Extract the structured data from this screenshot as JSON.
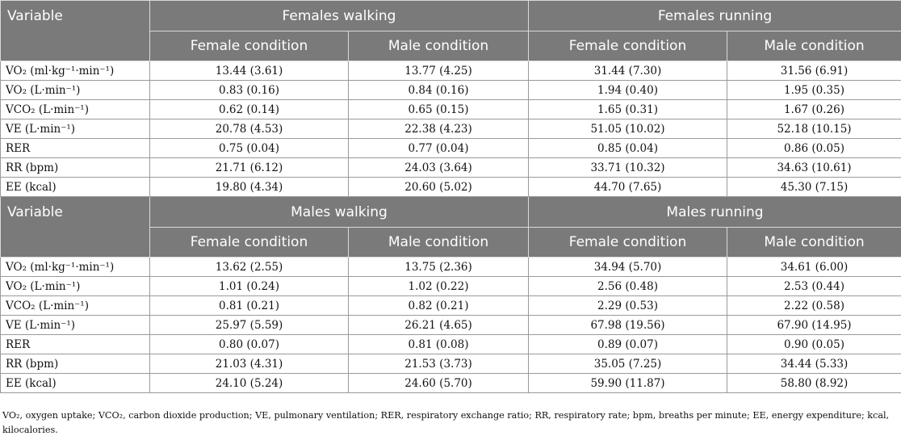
{
  "sections": [
    {
      "variable_header": "Variable",
      "group_a": "Females walking",
      "group_b": "Females running",
      "conditions": [
        "Female condition",
        "Male condition",
        "Female condition",
        "Male condition"
      ],
      "rows": [
        {
          "label": "VO₂ (ml·kg⁻¹·min⁻¹)",
          "values": [
            "13.44 (3.61)",
            "13.77 (4.25)",
            "31.44 (7.30)",
            "31.56 (6.91)"
          ]
        },
        {
          "label": "VO₂ (L·min⁻¹)",
          "values": [
            "0.83 (0.16)",
            "0.84 (0.16)",
            "1.94 (0.40)",
            "1.95 (0.35)"
          ]
        },
        {
          "label": "VCO₂ (L·min⁻¹)",
          "values": [
            "0.62 (0.14)",
            "0.65 (0.15)",
            "1.65 (0.31)",
            "1.67 (0.26)"
          ]
        },
        {
          "label": "VE (L·min⁻¹)",
          "values": [
            "20.78 (4.53)",
            "22.38 (4.23)",
            "51.05 (10.02)",
            "52.18 (10.15)"
          ]
        },
        {
          "label": "RER",
          "values": [
            "0.75 (0.04)",
            "0.77 (0.04)",
            "0.85 (0.04)",
            "0.86 (0.05)"
          ]
        },
        {
          "label": "RR (bpm)",
          "values": [
            "21.71 (6.12)",
            "24.03 (3.64)",
            "33.71 (10.32)",
            "34.63 (10.61)"
          ]
        },
        {
          "label": "EE (kcal)",
          "values": [
            "19.80 (4.34)",
            "20.60 (5.02)",
            "44.70 (7.65)",
            "45.30 (7.15)"
          ]
        }
      ]
    },
    {
      "variable_header": "Variable",
      "group_a": "Males walking",
      "group_b": "Males running",
      "conditions": [
        "Female condition",
        "Male condition",
        "Female condition",
        "Male condition"
      ],
      "rows": [
        {
          "label": "VO₂ (ml·kg⁻¹·min⁻¹)",
          "values": [
            "13.62 (2.55)",
            "13.75 (2.36)",
            "34.94 (5.70)",
            "34.61 (6.00)"
          ]
        },
        {
          "label": "VO₂ (L·min⁻¹)",
          "values": [
            "1.01 (0.24)",
            "1.02 (0.22)",
            "2.56 (0.48)",
            "2.53 (0.44)"
          ]
        },
        {
          "label": "VCO₂ (L·min⁻¹)",
          "values": [
            "0.81 (0.21)",
            "0.82 (0.21)",
            "2.29 (0.53)",
            "2.22 (0.58)"
          ]
        },
        {
          "label": "VE (L·min⁻¹)",
          "values": [
            "25.97 (5.59)",
            "26.21 (4.65)",
            "67.98 (19.56)",
            "67.90 (14.95)"
          ]
        },
        {
          "label": "RER",
          "values": [
            "0.80 (0.07)",
            "0.81 (0.08)",
            "0.89 (0.07)",
            "0.90 (0.05)"
          ]
        },
        {
          "label": "RR (bpm)",
          "values": [
            "21.03 (4.31)",
            "21.53 (3.73)",
            "35.05 (7.25)",
            "34.44 (5.33)"
          ]
        },
        {
          "label": "EE (kcal)",
          "values": [
            "24.10 (5.24)",
            "24.60 (5.70)",
            "59.90 (11.87)",
            "58.80 (8.92)"
          ]
        }
      ]
    }
  ],
  "footnote": "VO₂, oxygen uptake; VCO₂, carbon dioxide production; VE, pulmonary ventilation; RER, respiratory exchange ratio; RR, respiratory rate; bpm, breaths per minute; EE, energy expenditure; kcal, kilocalories."
}
